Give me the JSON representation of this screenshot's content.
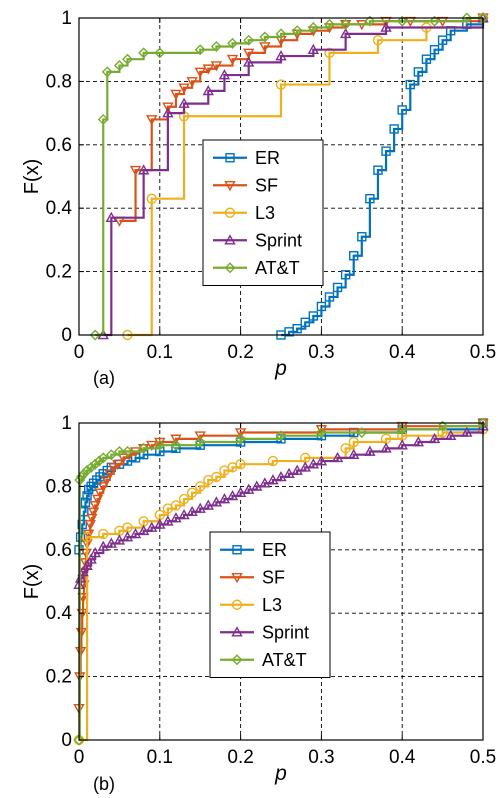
{
  "chart_data": [
    {
      "type": "line",
      "panel_label": "(a)",
      "xlabel": "p",
      "ylabel": "F(x)",
      "xlim": [
        0,
        0.5
      ],
      "ylim": [
        0,
        1
      ],
      "xticks": [
        "0",
        "0.1",
        "0.2",
        "0.3",
        "0.4",
        "0.5"
      ],
      "yticks": [
        "0",
        "0.2",
        "0.4",
        "0.6",
        "0.8",
        "1"
      ],
      "grid": true,
      "legend_position": "center-right",
      "series": [
        {
          "name": "ER",
          "color": "#0072BD",
          "marker": "square",
          "step": true,
          "x": [
            0.25,
            0.26,
            0.27,
            0.28,
            0.29,
            0.3,
            0.31,
            0.32,
            0.33,
            0.34,
            0.35,
            0.36,
            0.37,
            0.38,
            0.39,
            0.4,
            0.41,
            0.42,
            0.43,
            0.44,
            0.45,
            0.46,
            0.48,
            0.5
          ],
          "y": [
            0.0,
            0.01,
            0.02,
            0.04,
            0.06,
            0.09,
            0.12,
            0.15,
            0.19,
            0.25,
            0.31,
            0.43,
            0.52,
            0.58,
            0.65,
            0.71,
            0.79,
            0.83,
            0.87,
            0.9,
            0.93,
            0.96,
            0.98,
            1.0
          ]
        },
        {
          "name": "SF",
          "color": "#D95319",
          "marker": "triangle-down",
          "step": true,
          "x": [
            0.05,
            0.07,
            0.09,
            0.11,
            0.12,
            0.13,
            0.14,
            0.15,
            0.16,
            0.17,
            0.19,
            0.21,
            0.23,
            0.25,
            0.27,
            0.29,
            0.31,
            0.33,
            0.35,
            0.38,
            0.41,
            0.45,
            0.5
          ],
          "y": [
            0.36,
            0.52,
            0.68,
            0.72,
            0.76,
            0.78,
            0.8,
            0.83,
            0.84,
            0.85,
            0.87,
            0.89,
            0.91,
            0.93,
            0.95,
            0.96,
            0.97,
            0.98,
            0.98,
            0.99,
            0.99,
            0.99,
            1.0
          ]
        },
        {
          "name": "L3",
          "color": "#EDB120",
          "marker": "circle",
          "step": true,
          "x": [
            0.06,
            0.09,
            0.13,
            0.25,
            0.31,
            0.37,
            0.43,
            0.5
          ],
          "y": [
            0.0,
            0.43,
            0.69,
            0.79,
            0.89,
            0.93,
            0.97,
            1.0
          ]
        },
        {
          "name": "Sprint",
          "color": "#7E2F8E",
          "marker": "triangle-up",
          "step": true,
          "x": [
            0.03,
            0.04,
            0.08,
            0.11,
            0.13,
            0.16,
            0.18,
            0.21,
            0.25,
            0.29,
            0.33,
            0.38,
            0.5
          ],
          "y": [
            0.0,
            0.37,
            0.52,
            0.7,
            0.73,
            0.77,
            0.82,
            0.86,
            0.88,
            0.9,
            0.95,
            0.97,
            1.0
          ]
        },
        {
          "name": "AT&T",
          "color": "#77AC30",
          "marker": "diamond",
          "step": true,
          "x": [
            0.02,
            0.03,
            0.035,
            0.05,
            0.06,
            0.08,
            0.1,
            0.15,
            0.17,
            0.19,
            0.21,
            0.23,
            0.25,
            0.27,
            0.29,
            0.31,
            0.33,
            0.36,
            0.4,
            0.44,
            0.48,
            0.5
          ],
          "y": [
            0.0,
            0.68,
            0.83,
            0.85,
            0.87,
            0.89,
            0.89,
            0.9,
            0.91,
            0.92,
            0.93,
            0.94,
            0.95,
            0.96,
            0.97,
            0.98,
            0.98,
            0.99,
            0.99,
            0.99,
            1.0,
            1.0
          ]
        }
      ]
    },
    {
      "type": "line",
      "panel_label": "(b)",
      "xlabel": "p",
      "ylabel": "F(x)",
      "xlim": [
        0,
        0.5
      ],
      "ylim": [
        0,
        1
      ],
      "xticks": [
        "0",
        "0.1",
        "0.2",
        "0.3",
        "0.4",
        "0.5"
      ],
      "yticks": [
        "0",
        "0.2",
        "0.4",
        "0.6",
        "0.8",
        "1"
      ],
      "grid": true,
      "legend_position": "center",
      "series": [
        {
          "name": "ER",
          "color": "#0072BD",
          "marker": "square",
          "step": true,
          "x": [
            0.0,
            0.002,
            0.004,
            0.006,
            0.008,
            0.01,
            0.012,
            0.015,
            0.018,
            0.022,
            0.026,
            0.03,
            0.035,
            0.04,
            0.05,
            0.06,
            0.07,
            0.08,
            0.1,
            0.12,
            0.15,
            0.2,
            0.25,
            0.3,
            0.34,
            0.4,
            0.5
          ],
          "y": [
            0.6,
            0.64,
            0.68,
            0.72,
            0.75,
            0.77,
            0.79,
            0.8,
            0.81,
            0.82,
            0.83,
            0.84,
            0.85,
            0.86,
            0.87,
            0.88,
            0.89,
            0.9,
            0.91,
            0.92,
            0.93,
            0.94,
            0.95,
            0.96,
            0.97,
            0.98,
            1.0
          ]
        },
        {
          "name": "SF",
          "color": "#D95319",
          "marker": "triangle-down",
          "step": true,
          "x": [
            0.0,
            0.001,
            0.002,
            0.003,
            0.004,
            0.005,
            0.006,
            0.007,
            0.008,
            0.009,
            0.01,
            0.012,
            0.014,
            0.016,
            0.018,
            0.02,
            0.023,
            0.026,
            0.03,
            0.034,
            0.038,
            0.043,
            0.048,
            0.055,
            0.062,
            0.07,
            0.08,
            0.09,
            0.1,
            0.12,
            0.15,
            0.2,
            0.3,
            0.4,
            0.5
          ],
          "y": [
            0.1,
            0.2,
            0.28,
            0.34,
            0.4,
            0.45,
            0.49,
            0.53,
            0.56,
            0.59,
            0.62,
            0.65,
            0.68,
            0.7,
            0.72,
            0.74,
            0.76,
            0.78,
            0.8,
            0.82,
            0.84,
            0.86,
            0.87,
            0.89,
            0.9,
            0.91,
            0.92,
            0.93,
            0.94,
            0.95,
            0.96,
            0.97,
            0.98,
            0.99,
            1.0
          ]
        },
        {
          "name": "L3",
          "color": "#EDB120",
          "marker": "circle",
          "step": true,
          "x": [
            0.0,
            0.01,
            0.03,
            0.05,
            0.06,
            0.08,
            0.1,
            0.11,
            0.12,
            0.13,
            0.14,
            0.15,
            0.16,
            0.17,
            0.18,
            0.19,
            0.2,
            0.24,
            0.28,
            0.33,
            0.34,
            0.38,
            0.4,
            0.45,
            0.5
          ],
          "y": [
            0.0,
            0.64,
            0.65,
            0.66,
            0.67,
            0.69,
            0.71,
            0.73,
            0.74,
            0.76,
            0.78,
            0.8,
            0.82,
            0.83,
            0.85,
            0.86,
            0.87,
            0.88,
            0.89,
            0.92,
            0.94,
            0.95,
            0.96,
            0.97,
            0.98
          ]
        },
        {
          "name": "Sprint",
          "color": "#7E2F8E",
          "marker": "triangle-up",
          "step": true,
          "x": [
            0.0,
            0.002,
            0.005,
            0.01,
            0.015,
            0.02,
            0.03,
            0.04,
            0.05,
            0.06,
            0.07,
            0.08,
            0.09,
            0.1,
            0.11,
            0.12,
            0.13,
            0.14,
            0.15,
            0.16,
            0.17,
            0.18,
            0.19,
            0.2,
            0.21,
            0.22,
            0.23,
            0.24,
            0.25,
            0.26,
            0.27,
            0.28,
            0.29,
            0.3,
            0.32,
            0.34,
            0.36,
            0.38,
            0.4,
            0.42,
            0.44,
            0.46,
            0.48,
            0.5
          ],
          "y": [
            0.49,
            0.51,
            0.53,
            0.55,
            0.57,
            0.59,
            0.61,
            0.62,
            0.63,
            0.64,
            0.65,
            0.66,
            0.67,
            0.68,
            0.69,
            0.7,
            0.71,
            0.72,
            0.73,
            0.74,
            0.75,
            0.76,
            0.77,
            0.78,
            0.79,
            0.8,
            0.81,
            0.82,
            0.83,
            0.84,
            0.85,
            0.86,
            0.87,
            0.88,
            0.89,
            0.9,
            0.91,
            0.92,
            0.93,
            0.94,
            0.95,
            0.96,
            0.97,
            0.99
          ]
        },
        {
          "name": "AT&T",
          "color": "#77AC30",
          "marker": "diamond",
          "step": true,
          "x": [
            0.0,
            0.001,
            0.003,
            0.006,
            0.01,
            0.015,
            0.02,
            0.025,
            0.03,
            0.04,
            0.05,
            0.06,
            0.08,
            0.1,
            0.12,
            0.15,
            0.2,
            0.25,
            0.3,
            0.35,
            0.4,
            0.45,
            0.5
          ],
          "y": [
            0.0,
            0.82,
            0.83,
            0.84,
            0.85,
            0.86,
            0.87,
            0.88,
            0.89,
            0.9,
            0.91,
            0.91,
            0.92,
            0.93,
            0.93,
            0.94,
            0.95,
            0.96,
            0.97,
            0.97,
            0.98,
            0.99,
            1.0
          ]
        }
      ]
    }
  ]
}
